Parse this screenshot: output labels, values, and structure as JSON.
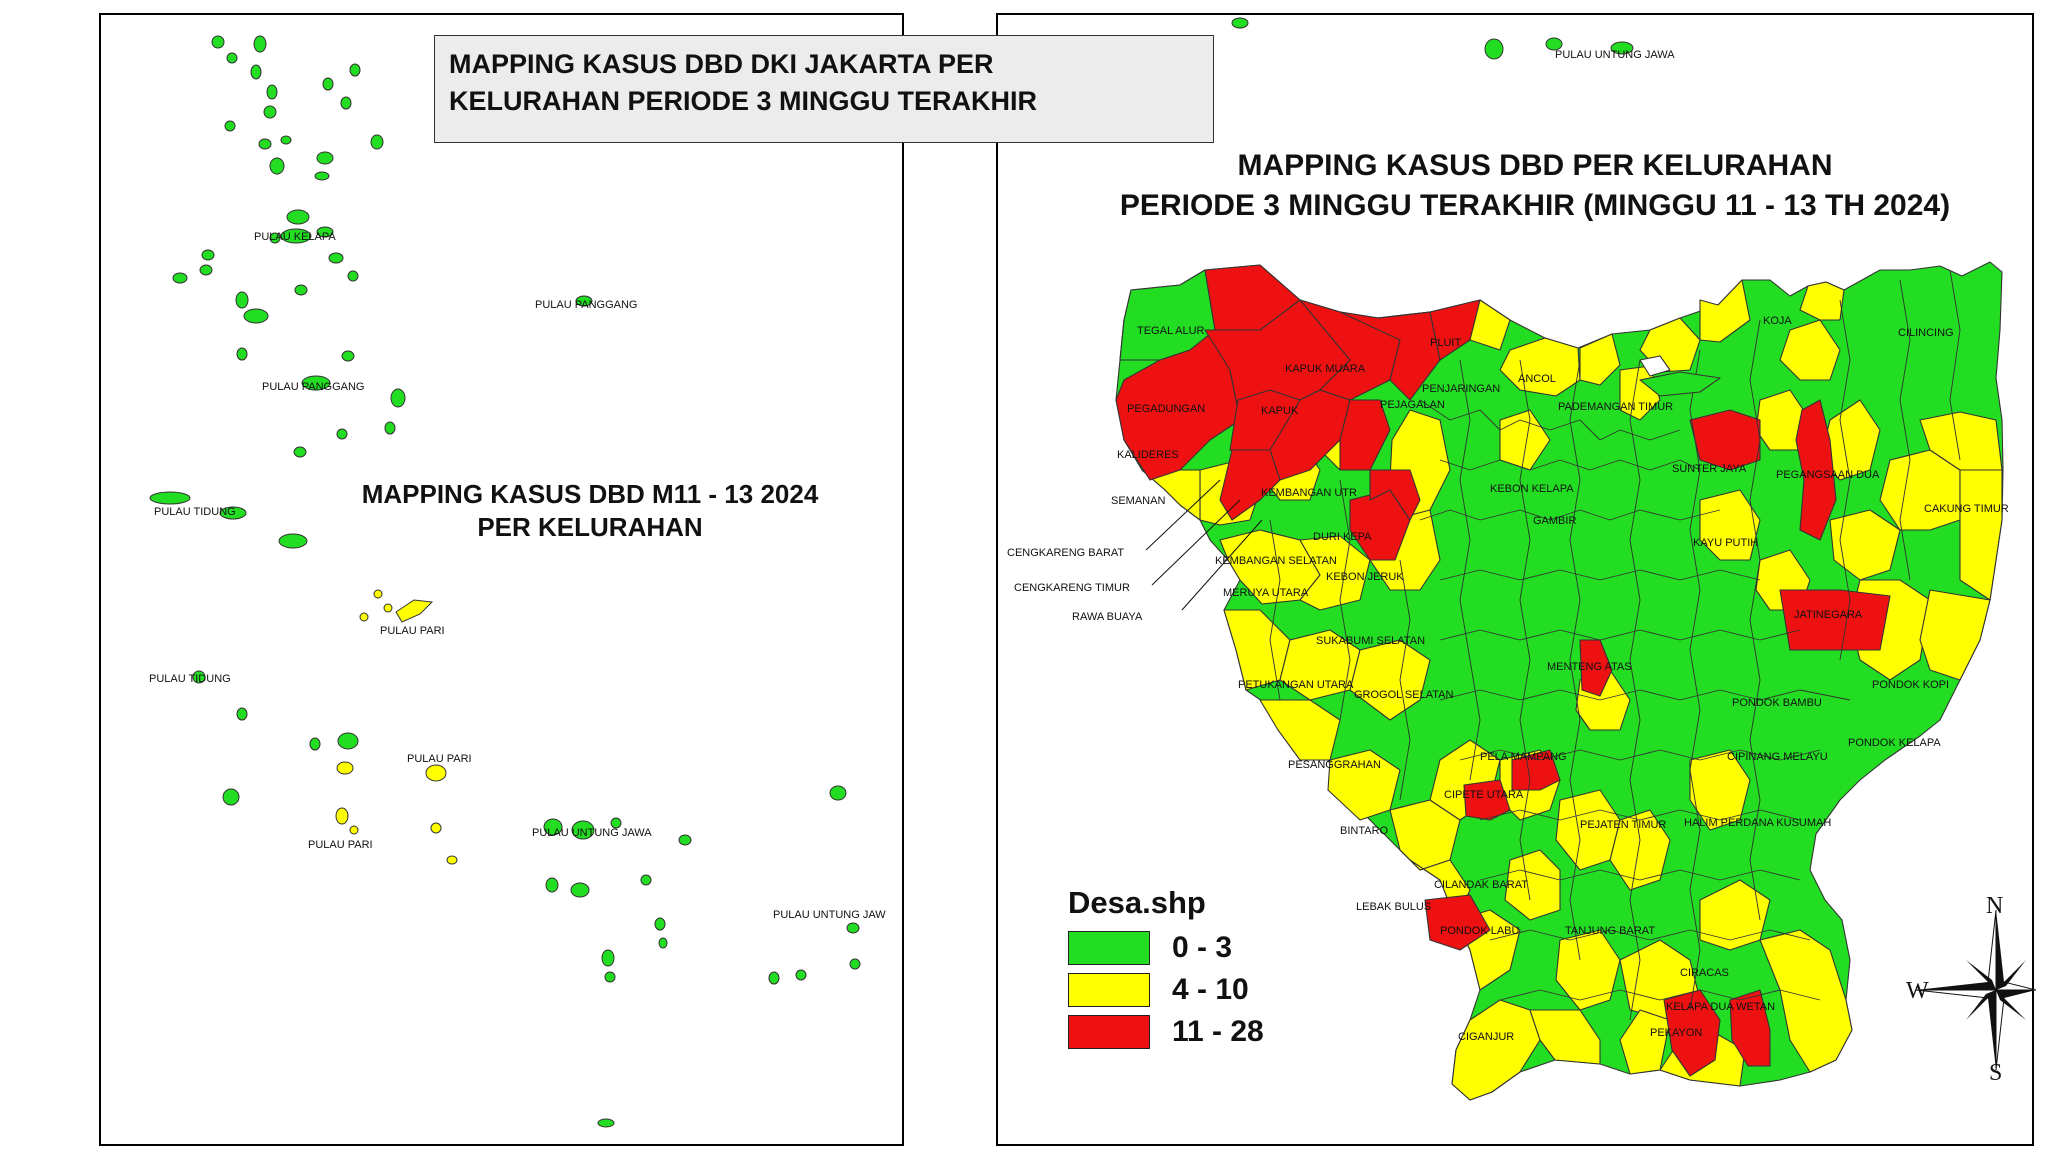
{
  "title_box": {
    "line1": "MAPPING KASUS DBD DKI JAKARTA PER",
    "line2": "KELURAHAN PERIODE 3 MINGGU TERAKHIR"
  },
  "left_map": {
    "subtitle_line1": "MAPPING KASUS DBD M11 - 13 2024",
    "subtitle_line2": "PER KELURAHAN",
    "labels": [
      "PULAU KELAPA",
      "PULAU PANGGANG",
      "PULAU PANGGANG",
      "PULAU TIDUNG",
      "PULAU PARI",
      "PULAU TIDUNG",
      "PULAU PARI",
      "PULAU PARI",
      "PULAU UNTUNG JAWA",
      "PULAU UNTUNG JAW"
    ]
  },
  "right_map": {
    "title_line1": "MAPPING KASUS DBD PER KELURAHAN",
    "title_line2": "PERIODE 3 MINGGU TERAKHIR (MINGGU 11 - 13 TH 2024)",
    "top_label": "PULAU UNTUNG JAWA",
    "labels": [
      "TEGAL ALUR",
      "KAPUK MUARA",
      "PLUIT",
      "PENJARINGAN",
      "ANCOL",
      "KOJA",
      "CILINCING",
      "PEGADUNGAN",
      "KAPUK",
      "PEJAGALAN",
      "PADEMANGAN TIMUR",
      "SUNTER JAYA",
      "PEGANGSAAN DUA",
      "KALIDERES",
      "SEMANAN",
      "KEMBANGAN UTR",
      "KEBON KELAPA",
      "GAMBIR",
      "CAKUNG TIMUR",
      "DURI KEPA",
      "KAYU PUTIH",
      "KEMBANGAN SELATAN",
      "KEBON JERUK",
      "JATINEGARA",
      "MERUYA UTARA",
      "SUKABUMI SELATAN",
      "MENTENG ATAS",
      "PETUKANGAN UTARA",
      "GROGOL SELATAN",
      "PONDOK BAMBU",
      "PONDOK KOPI",
      "PONDOK KELAPA",
      "PESANGGRAHAN",
      "PELA MAMPANG",
      "CIPINANG MELAYU",
      "CIPETE UTARA",
      "BINTARO",
      "PEJATEN TIMUR",
      "HALIM PERDANA KUSUMAH",
      "CILANDAK BARAT",
      "LEBAK BULUS",
      "PONDOK LABU",
      "TANJUNG BARAT",
      "CIRACAS",
      "KELAPA DUA WETAN",
      "PEKAYON",
      "CIGANJUR"
    ],
    "callouts": [
      "CENGKARENG BARAT",
      "CENGKARENG TIMUR",
      "RAWA BUAYA"
    ]
  },
  "legend": {
    "title": "Desa.shp",
    "items": [
      {
        "label": "0 - 3",
        "color": "#22dd22"
      },
      {
        "label": "4 - 10",
        "color": "#ffff00"
      },
      {
        "label": "11 - 28",
        "color": "#ee1111"
      }
    ]
  },
  "compass": {
    "n": "N",
    "w": "W",
    "s": "S"
  }
}
